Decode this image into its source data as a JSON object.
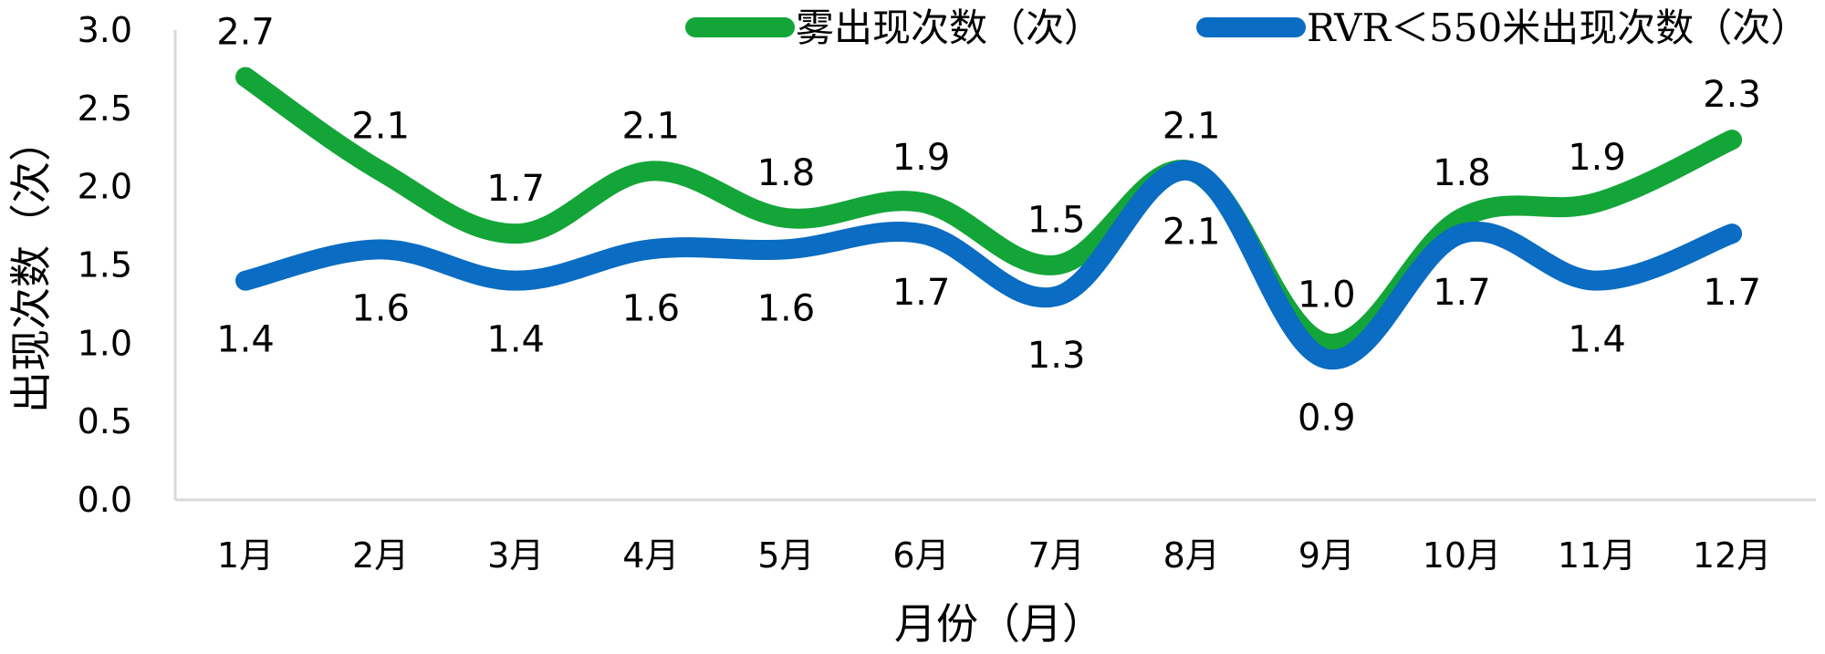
{
  "chart_data": {
    "type": "line",
    "categories": [
      "1月",
      "2月",
      "3月",
      "4月",
      "5月",
      "6月",
      "7月",
      "8月",
      "9月",
      "10月",
      "11月",
      "12月"
    ],
    "series": [
      {
        "name": "雾出现次数（次）",
        "color": "#13A538",
        "values": [
          2.7,
          2.1,
          1.7,
          2.1,
          1.8,
          1.9,
          1.5,
          2.1,
          1.0,
          1.8,
          1.9,
          2.3
        ]
      },
      {
        "name": "RVR＜550米出现次数（次）",
        "color": "#0A6CC2",
        "values": [
          1.4,
          1.6,
          1.4,
          1.6,
          1.6,
          1.7,
          1.3,
          2.1,
          0.9,
          1.7,
          1.4,
          1.7
        ]
      }
    ],
    "xlabel": "月份（月）",
    "ylabel": "出现次数（次）",
    "ylim": [
      0,
      3.0
    ],
    "yticks": [
      "0.0",
      "0.5",
      "1.0",
      "1.5",
      "2.0",
      "2.5",
      "3.0"
    ],
    "smooth": true,
    "grid": false,
    "legend_position": "top-right"
  }
}
